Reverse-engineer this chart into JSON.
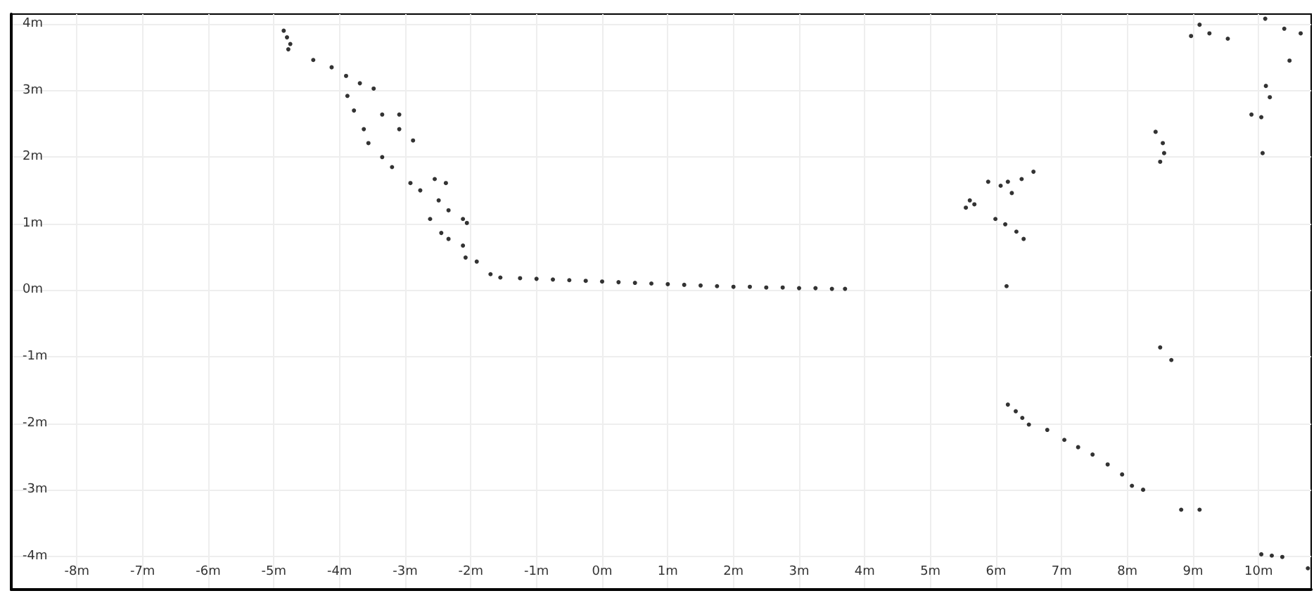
{
  "chart_data": {
    "type": "scatter",
    "color": "#000000",
    "marker": "circle",
    "grid": true,
    "xlim": [
      -9,
      10.8
    ],
    "ylim": [
      -4.5,
      4.15
    ],
    "xticks": [
      {
        "value": -8,
        "label": "-8m"
      },
      {
        "value": -7,
        "label": "-7m"
      },
      {
        "value": -6,
        "label": "-6m"
      },
      {
        "value": -5,
        "label": "-5m"
      },
      {
        "value": -4,
        "label": "-4m"
      },
      {
        "value": -3,
        "label": "-3m"
      },
      {
        "value": -2,
        "label": "-2m"
      },
      {
        "value": -1,
        "label": "-1m"
      },
      {
        "value": 0,
        "label": "0m"
      },
      {
        "value": 1,
        "label": "1m"
      },
      {
        "value": 2,
        "label": "2m"
      },
      {
        "value": 3,
        "label": "3m"
      },
      {
        "value": 4,
        "label": "4m"
      },
      {
        "value": 5,
        "label": "5m"
      },
      {
        "value": 6,
        "label": "6m"
      },
      {
        "value": 7,
        "label": "7m"
      },
      {
        "value": 8,
        "label": "8m"
      },
      {
        "value": 9,
        "label": "9m"
      },
      {
        "value": 10,
        "label": "10m"
      }
    ],
    "yticks": [
      {
        "value": -4,
        "label": "-4m"
      },
      {
        "value": -3,
        "label": "-3m"
      },
      {
        "value": -2,
        "label": "-2m"
      },
      {
        "value": -1,
        "label": "-1m"
      },
      {
        "value": 0,
        "label": "0m"
      },
      {
        "value": 1,
        "label": "1m"
      },
      {
        "value": 2,
        "label": "2m"
      },
      {
        "value": 3,
        "label": "3m"
      },
      {
        "value": 4,
        "label": "4m"
      }
    ],
    "x": [
      -4.85,
      -4.8,
      -4.75,
      -4.78,
      -4.4,
      -4.12,
      -3.9,
      -3.69,
      -3.88,
      -3.48,
      -3.78,
      -3.63,
      -3.56,
      -3.35,
      -3.2,
      -3.09,
      -2.88,
      -3.35,
      -3.09,
      -2.92,
      -2.77,
      -2.55,
      -2.38,
      -2.49,
      -2.34,
      -2.12,
      -2.06,
      -2.62,
      -2.45,
      -2.34,
      -2.12,
      -2.08,
      -1.91,
      -1.7,
      -1.55,
      -1.25,
      -1.0,
      -0.75,
      -0.5,
      -0.25,
      0,
      0.25,
      0.5,
      0.75,
      1.0,
      1.25,
      1.5,
      1.75,
      2.0,
      2.25,
      2.5,
      2.75,
      3.0,
      3.25,
      3.5,
      3.7,
      6.16,
      5.6,
      5.54,
      5.67,
      5.88,
      6.07,
      6.18,
      6.24,
      6.39,
      6.57,
      5.99,
      6.14,
      6.31,
      6.42,
      8.43,
      8.54,
      8.5,
      8.56,
      9.1,
      8.97,
      9.25,
      9.53,
      10.1,
      10.39,
      10.64,
      10.47,
      10.11,
      10.17,
      9.89,
      10.04,
      10.06,
      8.5,
      8.67,
      6.18,
      6.3,
      6.4,
      6.5,
      6.78,
      7.04,
      7.25,
      7.47,
      7.7,
      7.92,
      8.07,
      8.24,
      8.82,
      9.1,
      10.04,
      10.2,
      10.36,
      10.75
    ],
    "values": [
      3.9,
      3.8,
      3.7,
      3.62,
      3.46,
      3.35,
      3.22,
      3.11,
      2.92,
      3.03,
      2.7,
      2.42,
      2.21,
      2.0,
      1.85,
      2.42,
      2.25,
      2.64,
      2.64,
      1.61,
      1.5,
      1.67,
      1.61,
      1.35,
      1.2,
      1.07,
      1.01,
      1.07,
      0.86,
      0.77,
      0.67,
      0.49,
      0.43,
      0.24,
      0.19,
      0.18,
      0.17,
      0.16,
      0.15,
      0.14,
      0.13,
      0.12,
      0.11,
      0.1,
      0.09,
      0.08,
      0.07,
      0.06,
      0.05,
      0.05,
      0.04,
      0.04,
      0.03,
      0.03,
      0.02,
      0.02,
      0.06,
      1.35,
      1.24,
      1.29,
      1.63,
      1.57,
      1.63,
      1.46,
      1.67,
      1.78,
      1.07,
      0.99,
      0.88,
      0.77,
      2.38,
      2.21,
      1.93,
      2.06,
      3.99,
      3.82,
      3.86,
      3.78,
      4.08,
      3.93,
      3.86,
      3.45,
      3.07,
      2.9,
      2.64,
      2.6,
      2.06,
      -0.86,
      -1.05,
      -1.72,
      -1.82,
      -1.92,
      -2.02,
      -2.1,
      -2.25,
      -2.36,
      -2.47,
      -2.62,
      -2.77,
      -2.94,
      -3.0,
      -3.3,
      -3.3,
      -3.97,
      -3.99,
      -4.01,
      -4.18
    ]
  }
}
